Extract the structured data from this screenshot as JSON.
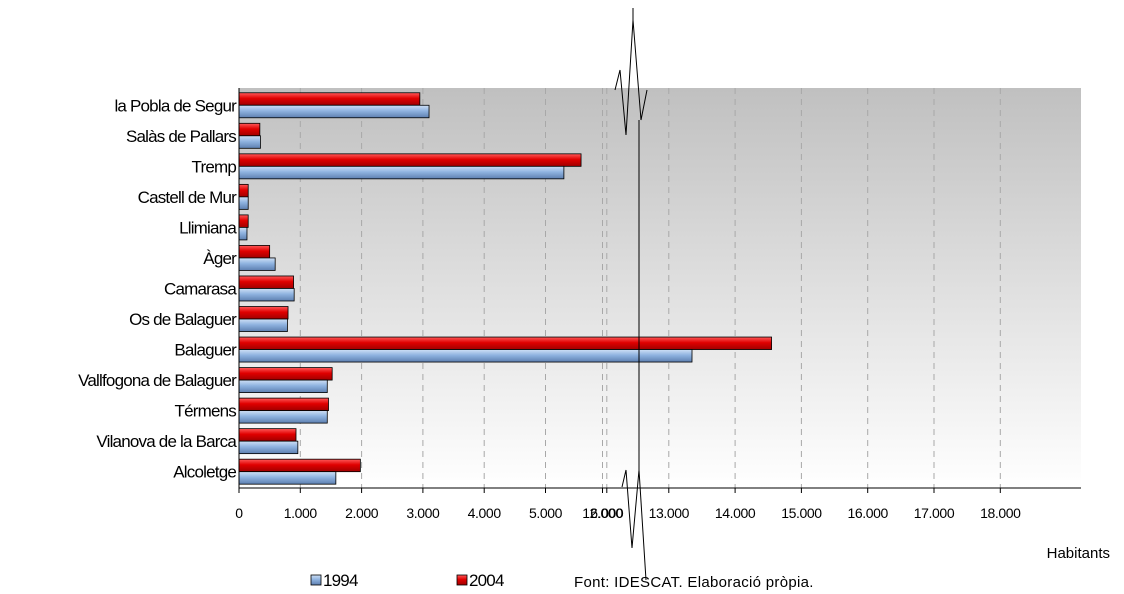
{
  "chart_data": {
    "type": "bar",
    "orientation": "horizontal",
    "categories": [
      "la Pobla de Segur",
      "Salàs de Pallars",
      "Tremp",
      "Castell de Mur",
      "Llimiana",
      "Àger",
      "Camarasa",
      "Os de Balaguer",
      "Balaguer",
      "Vallfogona de Balaguer",
      "Térmens",
      "Vilanova de la Barca",
      "Alcoletge"
    ],
    "series": [
      {
        "name": "1994",
        "color": "#7FA6D6",
        "values": [
          3100,
          350,
          5300,
          150,
          130,
          590,
          900,
          790,
          13350,
          1440,
          1440,
          960,
          1580
        ]
      },
      {
        "name": "2004",
        "color": "#E00000",
        "values": [
          2950,
          340,
          5580,
          150,
          150,
          500,
          890,
          800,
          14550,
          1520,
          1460,
          930,
          1980
        ]
      }
    ],
    "xlabel": "Habitants",
    "x_ticks": [
      "0",
      "1.000",
      "2.000",
      "3.000",
      "4.000",
      "5.000",
      "6.000",
      "12.000",
      "13.000",
      "14.000",
      "15.000",
      "16.000",
      "17.000",
      "18.000"
    ],
    "x_tick_values": [
      0,
      1000,
      2000,
      3000,
      4000,
      5000,
      6000,
      12000,
      13000,
      14000,
      15000,
      16000,
      17000,
      18000
    ],
    "axis_break": {
      "from": 6000,
      "to": 12000
    },
    "xlim": [
      0,
      18000
    ],
    "grid": "vertical dashed",
    "legend_position": "bottom-left",
    "legend": [
      "1994",
      "2004"
    ],
    "source_note": "Font: IDESCAT.  Elaboració pròpia.",
    "plot_background": "gradient gray to white"
  }
}
